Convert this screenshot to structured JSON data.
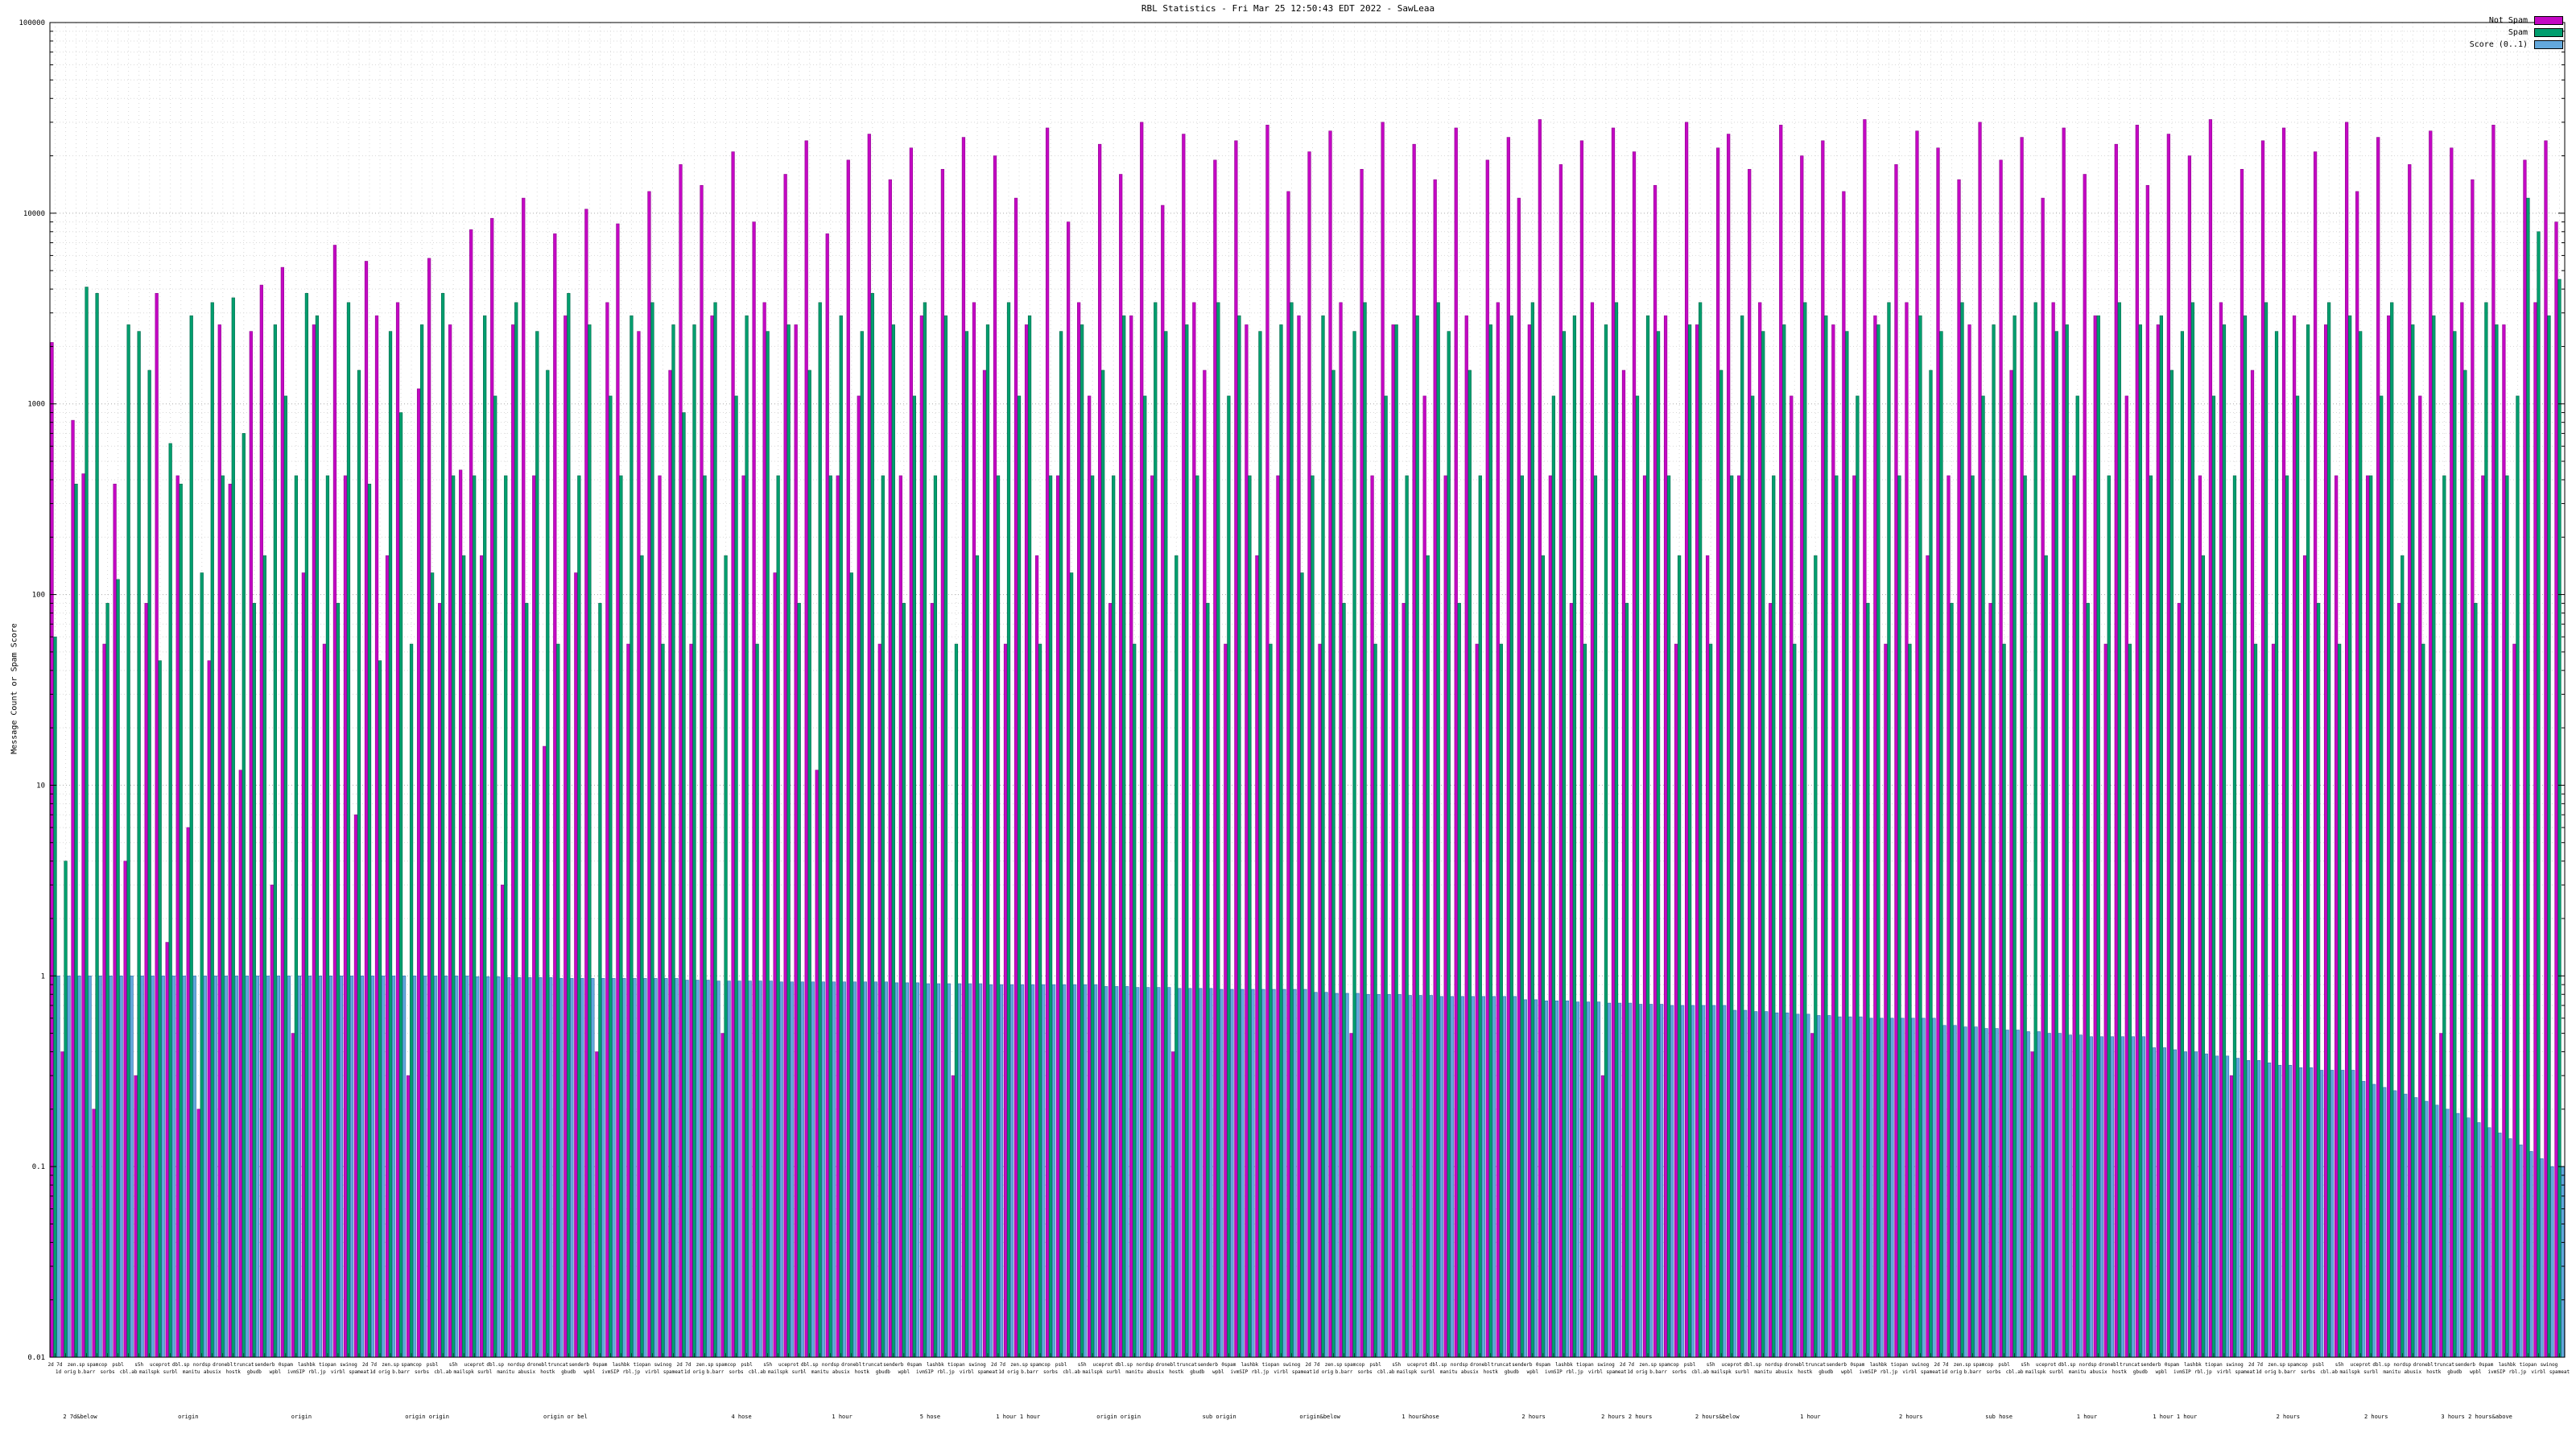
{
  "title": "RBL Statistics - Fri Mar 25 12:50:43 EDT 2022 - SawLeaa",
  "y_axis": {
    "label": "Message Count or Spam Score",
    "ticks": [
      "100000",
      "10000",
      "1000",
      "100",
      "10",
      "1",
      "0.1",
      "0.01"
    ],
    "min": 0.01,
    "max": 100000,
    "scale": "log"
  },
  "legend": [
    {
      "label": "Not Spam",
      "color": "#c408c4"
    },
    {
      "label": "Spam",
      "color": "#009e6e"
    },
    {
      "label": "Score (0..1)",
      "color": "#63a8dc"
    }
  ],
  "chart_data": {
    "type": "bar",
    "title": "RBL Statistics - Fri Mar 25 12:50:43 EDT 2022 - SawLeaa",
    "xlabel": "",
    "ylabel": "Message Count or Spam Score",
    "ylim": [
      0.01,
      100000
    ],
    "log_scale": true,
    "grid": true,
    "legend_position": "top-right",
    "series_names": [
      "Not Spam",
      "Spam",
      "Score (0..1)"
    ],
    "colors": {
      "not_spam_fill": "#c408c4",
      "not_spam_stroke": "#8e068e",
      "spam_fill": "#009e6e",
      "spam_stroke": "#00684a",
      "score_fill": "#63a8dc",
      "score_stroke": "#2f6fa8",
      "grid_major": "#aaaaaa",
      "grid_minor": "#d9d9d9",
      "border": "#000000"
    },
    "label_pool": [
      "2d 7d",
      "1d orig",
      "zen.sp",
      "b.barr",
      "spamcop",
      "sorbs",
      "psbl",
      "cbl.ab",
      "s5h",
      "mailspk",
      "uceprot",
      "surbl",
      "dbl.sp",
      "manitu",
      "nordsp",
      "abusix",
      "dronebl",
      "hostk",
      "truncat",
      "gbudb",
      "senderb",
      "wpbl",
      "0spam",
      "ivmSIP",
      "lashbk",
      "rbl.jp",
      "tiopan",
      "virbl",
      "swinog",
      "spameat"
    ],
    "sub_labels": [
      {
        "text": "2 7d&below",
        "pos": 0.012
      },
      {
        "text": "origin",
        "pos": 0.055
      },
      {
        "text": "origin",
        "pos": 0.1
      },
      {
        "text": "origin origin",
        "pos": 0.15
      },
      {
        "text": "origin or bel",
        "pos": 0.205
      },
      {
        "text": "4 hose",
        "pos": 0.275
      },
      {
        "text": "1 hour",
        "pos": 0.315
      },
      {
        "text": "5 hose",
        "pos": 0.35
      },
      {
        "text": "1 hour 1 hour",
        "pos": 0.385
      },
      {
        "text": "origin origin",
        "pos": 0.425
      },
      {
        "text": "sub origin",
        "pos": 0.465
      },
      {
        "text": "origin&below",
        "pos": 0.505
      },
      {
        "text": "1 hour&hose",
        "pos": 0.545
      },
      {
        "text": "2 hours",
        "pos": 0.59
      },
      {
        "text": "2 hours 2 hours",
        "pos": 0.627
      },
      {
        "text": "2 hours&below",
        "pos": 0.663
      },
      {
        "text": "1 hour",
        "pos": 0.7
      },
      {
        "text": "2 hours",
        "pos": 0.74
      },
      {
        "text": "sub hose",
        "pos": 0.775
      },
      {
        "text": "1 hour",
        "pos": 0.81
      },
      {
        "text": "1 hour 1 hour",
        "pos": 0.845
      },
      {
        "text": "2 hours",
        "pos": 0.89
      },
      {
        "text": "2 hours",
        "pos": 0.925
      },
      {
        "text": "3 hours 2 hours&above",
        "pos": 0.965
      }
    ],
    "entries_legend": "each entry = [not_spam_count, spam_count, score_0_to_1]; 0 = bar absent",
    "entries": [
      [
        2100,
        60,
        1
      ],
      [
        0.4,
        4,
        1
      ],
      [
        820,
        380,
        1
      ],
      [
        430,
        4100,
        1
      ],
      [
        0.2,
        3800,
        1
      ],
      [
        55,
        90,
        1
      ],
      [
        380,
        120,
        1
      ],
      [
        4,
        2600,
        1
      ],
      [
        0.3,
        2400,
        1
      ],
      [
        90,
        1500,
        1
      ],
      [
        3800,
        45,
        1
      ],
      [
        1.5,
        620,
        1
      ],
      [
        420,
        380,
        1
      ],
      [
        6,
        2900,
        1
      ],
      [
        0.2,
        130,
        1
      ],
      [
        45,
        3400,
        1
      ],
      [
        2600,
        420,
        1
      ],
      [
        380,
        3600,
        1
      ],
      [
        12,
        700,
        1
      ],
      [
        2400,
        90,
        1
      ],
      [
        4200,
        160,
        1
      ],
      [
        3,
        2600,
        1
      ],
      [
        5200,
        1100,
        1
      ],
      [
        0.5,
        420,
        1
      ],
      [
        130,
        3800,
        1
      ],
      [
        2600,
        2900,
        1
      ],
      [
        55,
        420,
        1
      ],
      [
        6800,
        90,
        1
      ],
      [
        420,
        3400,
        1
      ],
      [
        7,
        1500,
        1
      ],
      [
        5600,
        380,
        1
      ],
      [
        2900,
        45,
        1
      ],
      [
        160,
        2400,
        1
      ],
      [
        3400,
        900,
        1
      ],
      [
        0.3,
        55,
        1
      ],
      [
        1200,
        2600,
        1
      ],
      [
        5800,
        130,
        1
      ],
      [
        90,
        3800,
        1
      ],
      [
        2600,
        420,
        1
      ],
      [
        450,
        160,
        1
      ],
      [
        8200,
        420,
        0.99
      ],
      [
        160,
        2900,
        0.99
      ],
      [
        9400,
        1100,
        0.99
      ],
      [
        3,
        420,
        0.98
      ],
      [
        2600,
        3400,
        0.98
      ],
      [
        12000,
        90,
        0.98
      ],
      [
        420,
        2400,
        0.98
      ],
      [
        16,
        1500,
        0.98
      ],
      [
        7800,
        55,
        0.97
      ],
      [
        2900,
        3800,
        0.97
      ],
      [
        130,
        420,
        0.97
      ],
      [
        10500,
        2600,
        0.97
      ],
      [
        0.4,
        90,
        0.97
      ],
      [
        3400,
        1100,
        0.97
      ],
      [
        8800,
        420,
        0.97
      ],
      [
        55,
        2900,
        0.97
      ],
      [
        2400,
        160,
        0.97
      ],
      [
        13000,
        3400,
        0.97
      ],
      [
        420,
        55,
        0.97
      ],
      [
        1500,
        2600,
        0.97
      ],
      [
        18000,
        900,
        0.95
      ],
      [
        55,
        2600,
        0.95
      ],
      [
        14000,
        420,
        0.95
      ],
      [
        2900,
        3400,
        0.94
      ],
      [
        0.5,
        160,
        0.94
      ],
      [
        21000,
        1100,
        0.94
      ],
      [
        420,
        2900,
        0.94
      ],
      [
        9000,
        55,
        0.94
      ],
      [
        3400,
        2400,
        0.94
      ],
      [
        130,
        420,
        0.93
      ],
      [
        16000,
        2600,
        0.93
      ],
      [
        2600,
        90,
        0.93
      ],
      [
        24000,
        1500,
        0.93
      ],
      [
        12,
        3400,
        0.93
      ],
      [
        7800,
        420,
        0.93
      ],
      [
        420,
        2900,
        0.93
      ],
      [
        19000,
        130,
        0.93
      ],
      [
        1100,
        2400,
        0.93
      ],
      [
        26000,
        3800,
        0.93
      ],
      [
        55,
        420,
        0.93
      ],
      [
        15000,
        2600,
        0.92
      ],
      [
        420,
        90,
        0.92
      ],
      [
        22000,
        1100,
        0.92
      ],
      [
        2900,
        3400,
        0.91
      ],
      [
        90,
        420,
        0.91
      ],
      [
        17000,
        2900,
        0.91
      ],
      [
        0.3,
        55,
        0.91
      ],
      [
        25000,
        2400,
        0.91
      ],
      [
        3400,
        160,
        0.91
      ],
      [
        1500,
        2600,
        0.9
      ],
      [
        20000,
        420,
        0.9
      ],
      [
        55,
        3400,
        0.9
      ],
      [
        12000,
        1100,
        0.9
      ],
      [
        2600,
        2900,
        0.9
      ],
      [
        160,
        55,
        0.9
      ],
      [
        28000,
        420,
        0.9
      ],
      [
        420,
        2400,
        0.9
      ],
      [
        9000,
        130,
        0.9
      ],
      [
        3400,
        2600,
        0.9
      ],
      [
        1100,
        420,
        0.9
      ],
      [
        23000,
        1500,
        0.88
      ],
      [
        90,
        420,
        0.88
      ],
      [
        16000,
        2900,
        0.88
      ],
      [
        2900,
        55,
        0.87
      ],
      [
        30000,
        1100,
        0.87
      ],
      [
        420,
        3400,
        0.87
      ],
      [
        11000,
        2400,
        0.87
      ],
      [
        0.4,
        160,
        0.86
      ],
      [
        26000,
        2600,
        0.86
      ],
      [
        3400,
        420,
        0.86
      ],
      [
        1500,
        90,
        0.86
      ],
      [
        19000,
        3400,
        0.85
      ],
      [
        55,
        1100,
        0.85
      ],
      [
        24000,
        2900,
        0.85
      ],
      [
        2600,
        420,
        0.85
      ],
      [
        160,
        2400,
        0.85
      ],
      [
        29000,
        55,
        0.85
      ],
      [
        420,
        2600,
        0.85
      ],
      [
        13000,
        3400,
        0.85
      ],
      [
        2900,
        130,
        0.85
      ],
      [
        21000,
        420,
        0.82
      ],
      [
        55,
        2900,
        0.82
      ],
      [
        27000,
        1500,
        0.81
      ],
      [
        3400,
        90,
        0.81
      ],
      [
        0.5,
        2400,
        0.81
      ],
      [
        17000,
        3400,
        0.8
      ],
      [
        420,
        55,
        0.8
      ],
      [
        30000,
        1100,
        0.8
      ],
      [
        2600,
        2600,
        0.8
      ],
      [
        90,
        420,
        0.79
      ],
      [
        23000,
        2900,
        0.79
      ],
      [
        1100,
        160,
        0.79
      ],
      [
        15000,
        3400,
        0.78
      ],
      [
        420,
        2400,
        0.78
      ],
      [
        28000,
        90,
        0.78
      ],
      [
        2900,
        1500,
        0.78
      ],
      [
        55,
        420,
        0.78
      ],
      [
        19000,
        2600,
        0.78
      ],
      [
        3400,
        55,
        0.78
      ],
      [
        25000,
        2900,
        0.78
      ],
      [
        12000,
        420,
        0.75
      ],
      [
        2600,
        3400,
        0.75
      ],
      [
        31000,
        160,
        0.74
      ],
      [
        420,
        1100,
        0.74
      ],
      [
        18000,
        2400,
        0.74
      ],
      [
        90,
        2900,
        0.73
      ],
      [
        24000,
        55,
        0.73
      ],
      [
        3400,
        420,
        0.73
      ],
      [
        0.3,
        2600,
        0.72
      ],
      [
        28000,
        3400,
        0.72
      ],
      [
        1500,
        90,
        0.72
      ],
      [
        21000,
        1100,
        0.71
      ],
      [
        420,
        2900,
        0.71
      ],
      [
        14000,
        2400,
        0.71
      ],
      [
        2900,
        420,
        0.7
      ],
      [
        55,
        160,
        0.7
      ],
      [
        30000,
        2600,
        0.7
      ],
      [
        2600,
        3400,
        0.7
      ],
      [
        160,
        55,
        0.7
      ],
      [
        22000,
        1500,
        0.7
      ],
      [
        26000,
        420,
        0.66
      ],
      [
        420,
        2900,
        0.66
      ],
      [
        17000,
        1100,
        0.65
      ],
      [
        3400,
        2400,
        0.65
      ],
      [
        90,
        420,
        0.64
      ],
      [
        29000,
        2600,
        0.64
      ],
      [
        1100,
        55,
        0.63
      ],
      [
        20000,
        3400,
        0.63
      ],
      [
        0.5,
        160,
        0.62
      ],
      [
        24000,
        2900,
        0.62
      ],
      [
        2600,
        420,
        0.61
      ],
      [
        13000,
        2400,
        0.61
      ],
      [
        420,
        1100,
        0.61
      ],
      [
        31000,
        90,
        0.6
      ],
      [
        2900,
        2600,
        0.6
      ],
      [
        55,
        3400,
        0.6
      ],
      [
        18000,
        420,
        0.6
      ],
      [
        3400,
        55,
        0.6
      ],
      [
        27000,
        2900,
        0.6
      ],
      [
        160,
        1500,
        0.6
      ],
      [
        22000,
        2400,
        0.55
      ],
      [
        420,
        90,
        0.55
      ],
      [
        15000,
        3400,
        0.54
      ],
      [
        2600,
        420,
        0.54
      ],
      [
        30000,
        1100,
        0.53
      ],
      [
        90,
        2600,
        0.53
      ],
      [
        19000,
        55,
        0.52
      ],
      [
        1500,
        2900,
        0.52
      ],
      [
        25000,
        420,
        0.51
      ],
      [
        0.4,
        3400,
        0.51
      ],
      [
        12000,
        160,
        0.5
      ],
      [
        3400,
        2400,
        0.5
      ],
      [
        28000,
        2600,
        0.49
      ],
      [
        420,
        1100,
        0.49
      ],
      [
        16000,
        90,
        0.48
      ],
      [
        2900,
        2900,
        0.48
      ],
      [
        55,
        420,
        0.48
      ],
      [
        23000,
        3400,
        0.48
      ],
      [
        1100,
        55,
        0.48
      ],
      [
        29000,
        2600,
        0.48
      ],
      [
        14000,
        420,
        0.42
      ],
      [
        2600,
        2900,
        0.42
      ],
      [
        26000,
        1500,
        0.41
      ],
      [
        90,
        2400,
        0.4
      ],
      [
        20000,
        3400,
        0.4
      ],
      [
        420,
        160,
        0.39
      ],
      [
        31000,
        1100,
        0.38
      ],
      [
        3400,
        2600,
        0.38
      ],
      [
        0.3,
        420,
        0.37
      ],
      [
        17000,
        2900,
        0.36
      ],
      [
        1500,
        55,
        0.36
      ],
      [
        24000,
        3400,
        0.35
      ],
      [
        55,
        2400,
        0.34
      ],
      [
        28000,
        420,
        0.34
      ],
      [
        2900,
        1100,
        0.33
      ],
      [
        160,
        2600,
        0.33
      ],
      [
        21000,
        90,
        0.32
      ],
      [
        2600,
        3400,
        0.32
      ],
      [
        420,
        55,
        0.32
      ],
      [
        30000,
        2900,
        0.32
      ],
      [
        13000,
        2400,
        0.28
      ],
      [
        420,
        420,
        0.27
      ],
      [
        25000,
        1100,
        0.26
      ],
      [
        2900,
        3400,
        0.25
      ],
      [
        90,
        160,
        0.24
      ],
      [
        18000,
        2600,
        0.23
      ],
      [
        1100,
        55,
        0.22
      ],
      [
        27000,
        2900,
        0.21
      ],
      [
        0.5,
        420,
        0.2
      ],
      [
        22000,
        2400,
        0.19
      ],
      [
        3400,
        1500,
        0.18
      ],
      [
        15000,
        90,
        0.17
      ],
      [
        420,
        3400,
        0.16
      ],
      [
        29000,
        2600,
        0.15
      ],
      [
        2600,
        420,
        0.14
      ],
      [
        55,
        1100,
        0.13
      ],
      [
        19000,
        12000,
        0.12
      ],
      [
        3400,
        8000,
        0.11
      ],
      [
        24000,
        2900,
        0.1
      ],
      [
        9000,
        4500,
        0.1
      ]
    ]
  }
}
